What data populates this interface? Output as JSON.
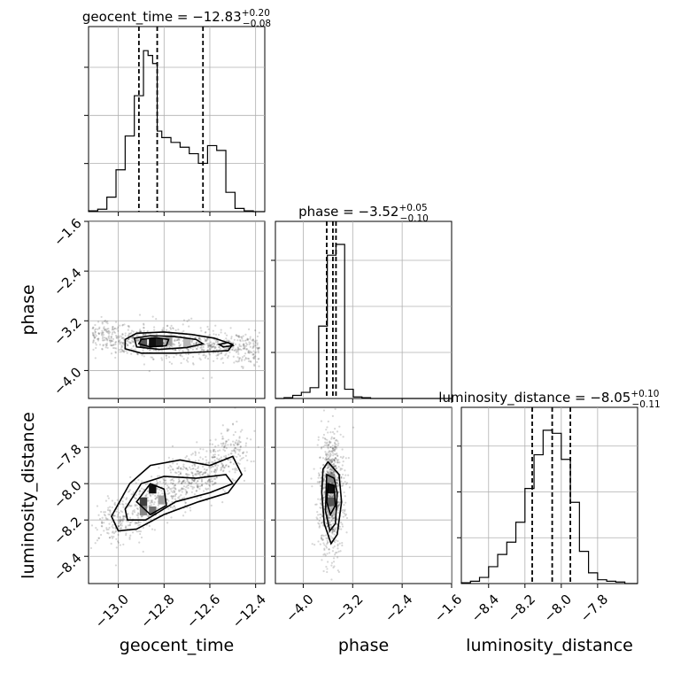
{
  "chart_data": {
    "type": "corner",
    "parameters": [
      "geocent_time",
      "phase",
      "luminosity_distance"
    ],
    "axis_labels": {
      "geocent_time": "geocent_time",
      "phase": "phase",
      "luminosity_distance": "luminosity_distance"
    },
    "ranges": {
      "geocent_time": [
        -13.13,
        -12.36
      ],
      "phase": [
        -4.45,
        -1.6
      ],
      "luminosity_distance": [
        -8.55,
        -7.58
      ]
    },
    "ticks": {
      "geocent_time": [
        -13.0,
        -12.8,
        -12.6,
        -12.4
      ],
      "phase": [
        -4.0,
        -3.2,
        -2.4,
        -1.6
      ],
      "luminosity_distance": [
        -8.4,
        -8.2,
        -8.0,
        -7.8
      ]
    },
    "tick_labels": {
      "geocent_time": [
        "−13.0",
        "−12.8",
        "−12.6",
        "−12.4"
      ],
      "phase": [
        "−4.0",
        "−3.2",
        "−2.4",
        "−1.6"
      ],
      "luminosity_distance": [
        "−8.4",
        "−8.2",
        "−8.0",
        "−7.8"
      ]
    },
    "marginals": [
      {
        "param": "geocent_time",
        "title_main": "geocent_time = −12.83",
        "title_sup": "+0.20",
        "title_sub": "−0.08",
        "median": -12.83,
        "plus": 0.2,
        "minus": 0.08,
        "quantiles": [
          -12.91,
          -12.83,
          -12.63
        ],
        "bin_edges": [
          -13.13,
          -13.09,
          -13.05,
          -13.01,
          -12.97,
          -12.93,
          -12.89,
          -12.87,
          -12.85,
          -12.83,
          -12.81,
          -12.77,
          -12.73,
          -12.69,
          -12.65,
          -12.61,
          -12.57,
          -12.53,
          -12.49,
          -12.45,
          -12.41,
          -12.36
        ],
        "counts": [
          0.5,
          1.5,
          9,
          26,
          47,
          72,
          100,
          97,
          92,
          50,
          46,
          43,
          40,
          36,
          30,
          41,
          38,
          12,
          2,
          0.5,
          0
        ]
      },
      {
        "param": "phase",
        "title_main": "phase = −3.52",
        "title_sup": "+0.05",
        "title_sub": "−0.10",
        "median": -3.52,
        "plus": 0.05,
        "minus": 0.1,
        "quantiles": [
          -3.62,
          -3.52,
          -3.47
        ],
        "bin_edges": [
          -4.45,
          -4.31,
          -4.17,
          -4.03,
          -3.89,
          -3.75,
          -3.61,
          -3.47,
          -3.33,
          -3.19,
          -3.05,
          -2.91,
          -1.6
        ],
        "counts": [
          0,
          0.5,
          2,
          4,
          7,
          47,
          93,
          100,
          6,
          1,
          0.5,
          0
        ]
      },
      {
        "param": "luminosity_distance",
        "title_main": "luminosity_distance = −8.05",
        "title_sup": "+0.10",
        "title_sub": "−0.11",
        "median": -8.05,
        "plus": 0.1,
        "minus": 0.11,
        "quantiles": [
          -8.16,
          -8.05,
          -7.95
        ],
        "bin_edges": [
          -8.55,
          -8.5,
          -8.45,
          -8.4,
          -8.35,
          -8.3,
          -8.25,
          -8.2,
          -8.15,
          -8.1,
          -8.05,
          -8.0,
          -7.95,
          -7.9,
          -7.85,
          -7.8,
          -7.75,
          -7.7,
          -7.65,
          -7.58
        ],
        "counts": [
          0.5,
          1.5,
          4,
          11,
          19,
          27,
          40,
          62,
          84,
          100,
          98,
          81,
          53,
          21,
          7,
          2.5,
          1.5,
          1,
          0
        ]
      }
    ],
    "joint": [
      {
        "x": "geocent_time",
        "y": "phase",
        "scatter_center": [
          -12.75,
          -3.55
        ],
        "cores": [
          {
            "x": -12.85,
            "y": -3.55,
            "count": 10
          },
          {
            "x": -12.82,
            "y": -3.55,
            "count": 9
          },
          {
            "x": -12.89,
            "y": -3.55,
            "count": 7
          },
          {
            "x": -12.78,
            "y": -3.52,
            "count": 4
          },
          {
            "x": -12.7,
            "y": -3.55,
            "count": 3
          }
        ],
        "contours": [
          [
            [
              -12.97,
              -3.5
            ],
            [
              -12.92,
              -3.4
            ],
            [
              -12.8,
              -3.38
            ],
            [
              -12.68,
              -3.42
            ],
            [
              -12.58,
              -3.48
            ],
            [
              -12.5,
              -3.58
            ],
            [
              -12.52,
              -3.68
            ],
            [
              -12.62,
              -3.7
            ],
            [
              -12.75,
              -3.72
            ],
            [
              -12.9,
              -3.72
            ],
            [
              -12.97,
              -3.65
            ]
          ],
          [
            [
              -12.93,
              -3.48
            ],
            [
              -12.86,
              -3.44
            ],
            [
              -12.76,
              -3.45
            ],
            [
              -12.66,
              -3.5
            ],
            [
              -12.63,
              -3.57
            ],
            [
              -12.7,
              -3.63
            ],
            [
              -12.82,
              -3.66
            ],
            [
              -12.92,
              -3.62
            ]
          ],
          [
            [
              -12.9,
              -3.5
            ],
            [
              -12.84,
              -3.47
            ],
            [
              -12.78,
              -3.5
            ],
            [
              -12.79,
              -3.6
            ],
            [
              -12.86,
              -3.62
            ],
            [
              -12.91,
              -3.57
            ]
          ],
          [
            [
              -12.56,
              -3.58
            ],
            [
              -12.52,
              -3.55
            ],
            [
              -12.5,
              -3.6
            ],
            [
              -12.54,
              -3.62
            ]
          ]
        ]
      },
      {
        "x": "geocent_time",
        "y": "luminosity_distance",
        "scatter_center": [
          -12.78,
          -8.05
        ],
        "cores": [
          {
            "x": -12.85,
            "y": -8.03,
            "count": 10
          },
          {
            "x": -12.89,
            "y": -8.1,
            "count": 8
          },
          {
            "x": -12.85,
            "y": -8.15,
            "count": 6
          },
          {
            "x": -12.89,
            "y": -8.15,
            "count": 5
          },
          {
            "x": -12.81,
            "y": -8.09,
            "count": 4
          }
        ],
        "contours": [
          [
            [
              -13.03,
              -8.18
            ],
            [
              -12.95,
              -8.0
            ],
            [
              -12.86,
              -7.9
            ],
            [
              -12.73,
              -7.87
            ],
            [
              -12.6,
              -7.9
            ],
            [
              -12.5,
              -7.85
            ],
            [
              -12.46,
              -7.95
            ],
            [
              -12.52,
              -8.05
            ],
            [
              -12.65,
              -8.1
            ],
            [
              -12.8,
              -8.17
            ],
            [
              -12.92,
              -8.25
            ],
            [
              -13.0,
              -8.26
            ]
          ],
          [
            [
              -12.97,
              -8.14
            ],
            [
              -12.9,
              -8.0
            ],
            [
              -12.8,
              -7.96
            ],
            [
              -12.66,
              -7.97
            ],
            [
              -12.53,
              -7.95
            ],
            [
              -12.5,
              -8.0
            ],
            [
              -12.6,
              -8.05
            ],
            [
              -12.75,
              -8.1
            ],
            [
              -12.88,
              -8.2
            ],
            [
              -12.96,
              -8.2
            ]
          ],
          [
            [
              -12.92,
              -8.1
            ],
            [
              -12.86,
              -8.0
            ],
            [
              -12.8,
              -8.03
            ],
            [
              -12.79,
              -8.12
            ],
            [
              -12.86,
              -8.17
            ]
          ]
        ]
      },
      {
        "x": "phase",
        "y": "luminosity_distance",
        "scatter_center": [
          -3.55,
          -8.05
        ],
        "cores": [
          {
            "x": -3.55,
            "y": -8.03,
            "count": 10
          },
          {
            "x": -3.55,
            "y": -8.1,
            "count": 7
          },
          {
            "x": -3.55,
            "y": -7.97,
            "count": 5
          },
          {
            "x": -3.55,
            "y": -8.15,
            "count": 3
          }
        ],
        "contours": [
          [
            [
              -3.68,
              -7.92
            ],
            [
              -3.6,
              -7.88
            ],
            [
              -3.42,
              -7.95
            ],
            [
              -3.38,
              -8.1
            ],
            [
              -3.45,
              -8.28
            ],
            [
              -3.55,
              -8.33
            ],
            [
              -3.66,
              -8.22
            ],
            [
              -3.7,
              -8.05
            ]
          ],
          [
            [
              -3.62,
              -7.95
            ],
            [
              -3.5,
              -7.97
            ],
            [
              -3.45,
              -8.05
            ],
            [
              -3.48,
              -8.22
            ],
            [
              -3.57,
              -8.26
            ],
            [
              -3.64,
              -8.15
            ]
          ],
          [
            [
              -3.6,
              -8.0
            ],
            [
              -3.5,
              -8.01
            ],
            [
              -3.48,
              -8.12
            ],
            [
              -3.56,
              -8.17
            ],
            [
              -3.62,
              -8.1
            ]
          ]
        ]
      }
    ]
  }
}
